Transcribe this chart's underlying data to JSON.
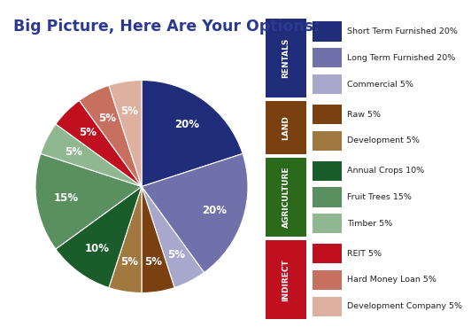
{
  "title": "Big Picture, Here Are Your Options:",
  "title_color": "#2b3990",
  "title_fontsize": 12.5,
  "slices": [
    {
      "label": "Short Term Furnished 20%",
      "value": 20,
      "color": "#1f2d7a"
    },
    {
      "label": "Long Term Furnished 20%",
      "value": 20,
      "color": "#7070aa"
    },
    {
      "label": "Commercial 5%",
      "value": 5,
      "color": "#a8a8cc"
    },
    {
      "label": "Raw 5%",
      "value": 5,
      "color": "#7a4010"
    },
    {
      "label": "Development 5%",
      "value": 5,
      "color": "#a07840"
    },
    {
      "label": "Annual Crops 10%",
      "value": 10,
      "color": "#1a5c2a"
    },
    {
      "label": "Fruit Trees 15%",
      "value": 15,
      "color": "#5a9060"
    },
    {
      "label": "Timber 5%",
      "value": 5,
      "color": "#90b890"
    },
    {
      "label": "REIT 5%",
      "value": 5,
      "color": "#c01020"
    },
    {
      "label": "Hard Money Loan 5%",
      "value": 5,
      "color": "#c87060"
    },
    {
      "label": "Development Company 5%",
      "value": 5,
      "color": "#deb0a0"
    }
  ],
  "legend_groups": [
    {
      "group": "RENTALS",
      "group_color": "#1f2d7a",
      "items": [
        0,
        1,
        2
      ]
    },
    {
      "group": "LAND",
      "group_color": "#7a4010",
      "items": [
        3,
        4
      ]
    },
    {
      "group": "AGRICULTURE",
      "group_color": "#2a6a1a",
      "items": [
        5,
        6,
        7
      ]
    },
    {
      "group": "INDIRECT",
      "group_color": "#c01020",
      "items": [
        8,
        9,
        10
      ]
    }
  ],
  "pct_fontsize": 8.5,
  "pct_color": "white",
  "background_color": "#ffffff"
}
